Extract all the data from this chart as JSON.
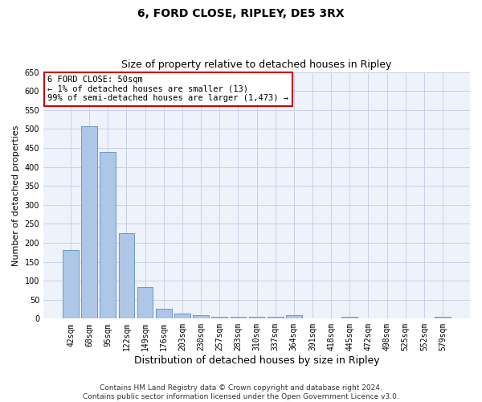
{
  "title": "6, FORD CLOSE, RIPLEY, DE5 3RX",
  "subtitle": "Size of property relative to detached houses in Ripley",
  "xlabel": "Distribution of detached houses by size in Ripley",
  "ylabel": "Number of detached properties",
  "categories": [
    "42sqm",
    "68sqm",
    "95sqm",
    "122sqm",
    "149sqm",
    "176sqm",
    "203sqm",
    "230sqm",
    "257sqm",
    "283sqm",
    "310sqm",
    "337sqm",
    "364sqm",
    "391sqm",
    "418sqm",
    "445sqm",
    "472sqm",
    "498sqm",
    "525sqm",
    "552sqm",
    "579sqm"
  ],
  "values": [
    180,
    508,
    440,
    226,
    84,
    27,
    14,
    9,
    6,
    6,
    6,
    6,
    9,
    0,
    0,
    5,
    0,
    0,
    0,
    0,
    5
  ],
  "bar_color": "#aec6e8",
  "bar_edge_color": "#5a8fc2",
  "ylim": [
    0,
    650
  ],
  "yticks": [
    0,
    50,
    100,
    150,
    200,
    250,
    300,
    350,
    400,
    450,
    500,
    550,
    600,
    650
  ],
  "annotation_line1": "6 FORD CLOSE: 50sqm",
  "annotation_line2": "← 1% of detached houses are smaller (13)",
  "annotation_line3": "99% of semi-detached houses are larger (1,473) →",
  "annotation_box_facecolor": "#ffffff",
  "annotation_box_edgecolor": "#cc0000",
  "footer_line1": "Contains HM Land Registry data © Crown copyright and database right 2024.",
  "footer_line2": "Contains public sector information licensed under the Open Government Licence v3.0.",
  "background_color": "#eef2fa",
  "grid_color": "#c8d0e8",
  "title_fontsize": 10,
  "subtitle_fontsize": 9,
  "xlabel_fontsize": 9,
  "ylabel_fontsize": 8,
  "tick_fontsize": 7,
  "annotation_fontsize": 7.5,
  "footer_fontsize": 6.5
}
